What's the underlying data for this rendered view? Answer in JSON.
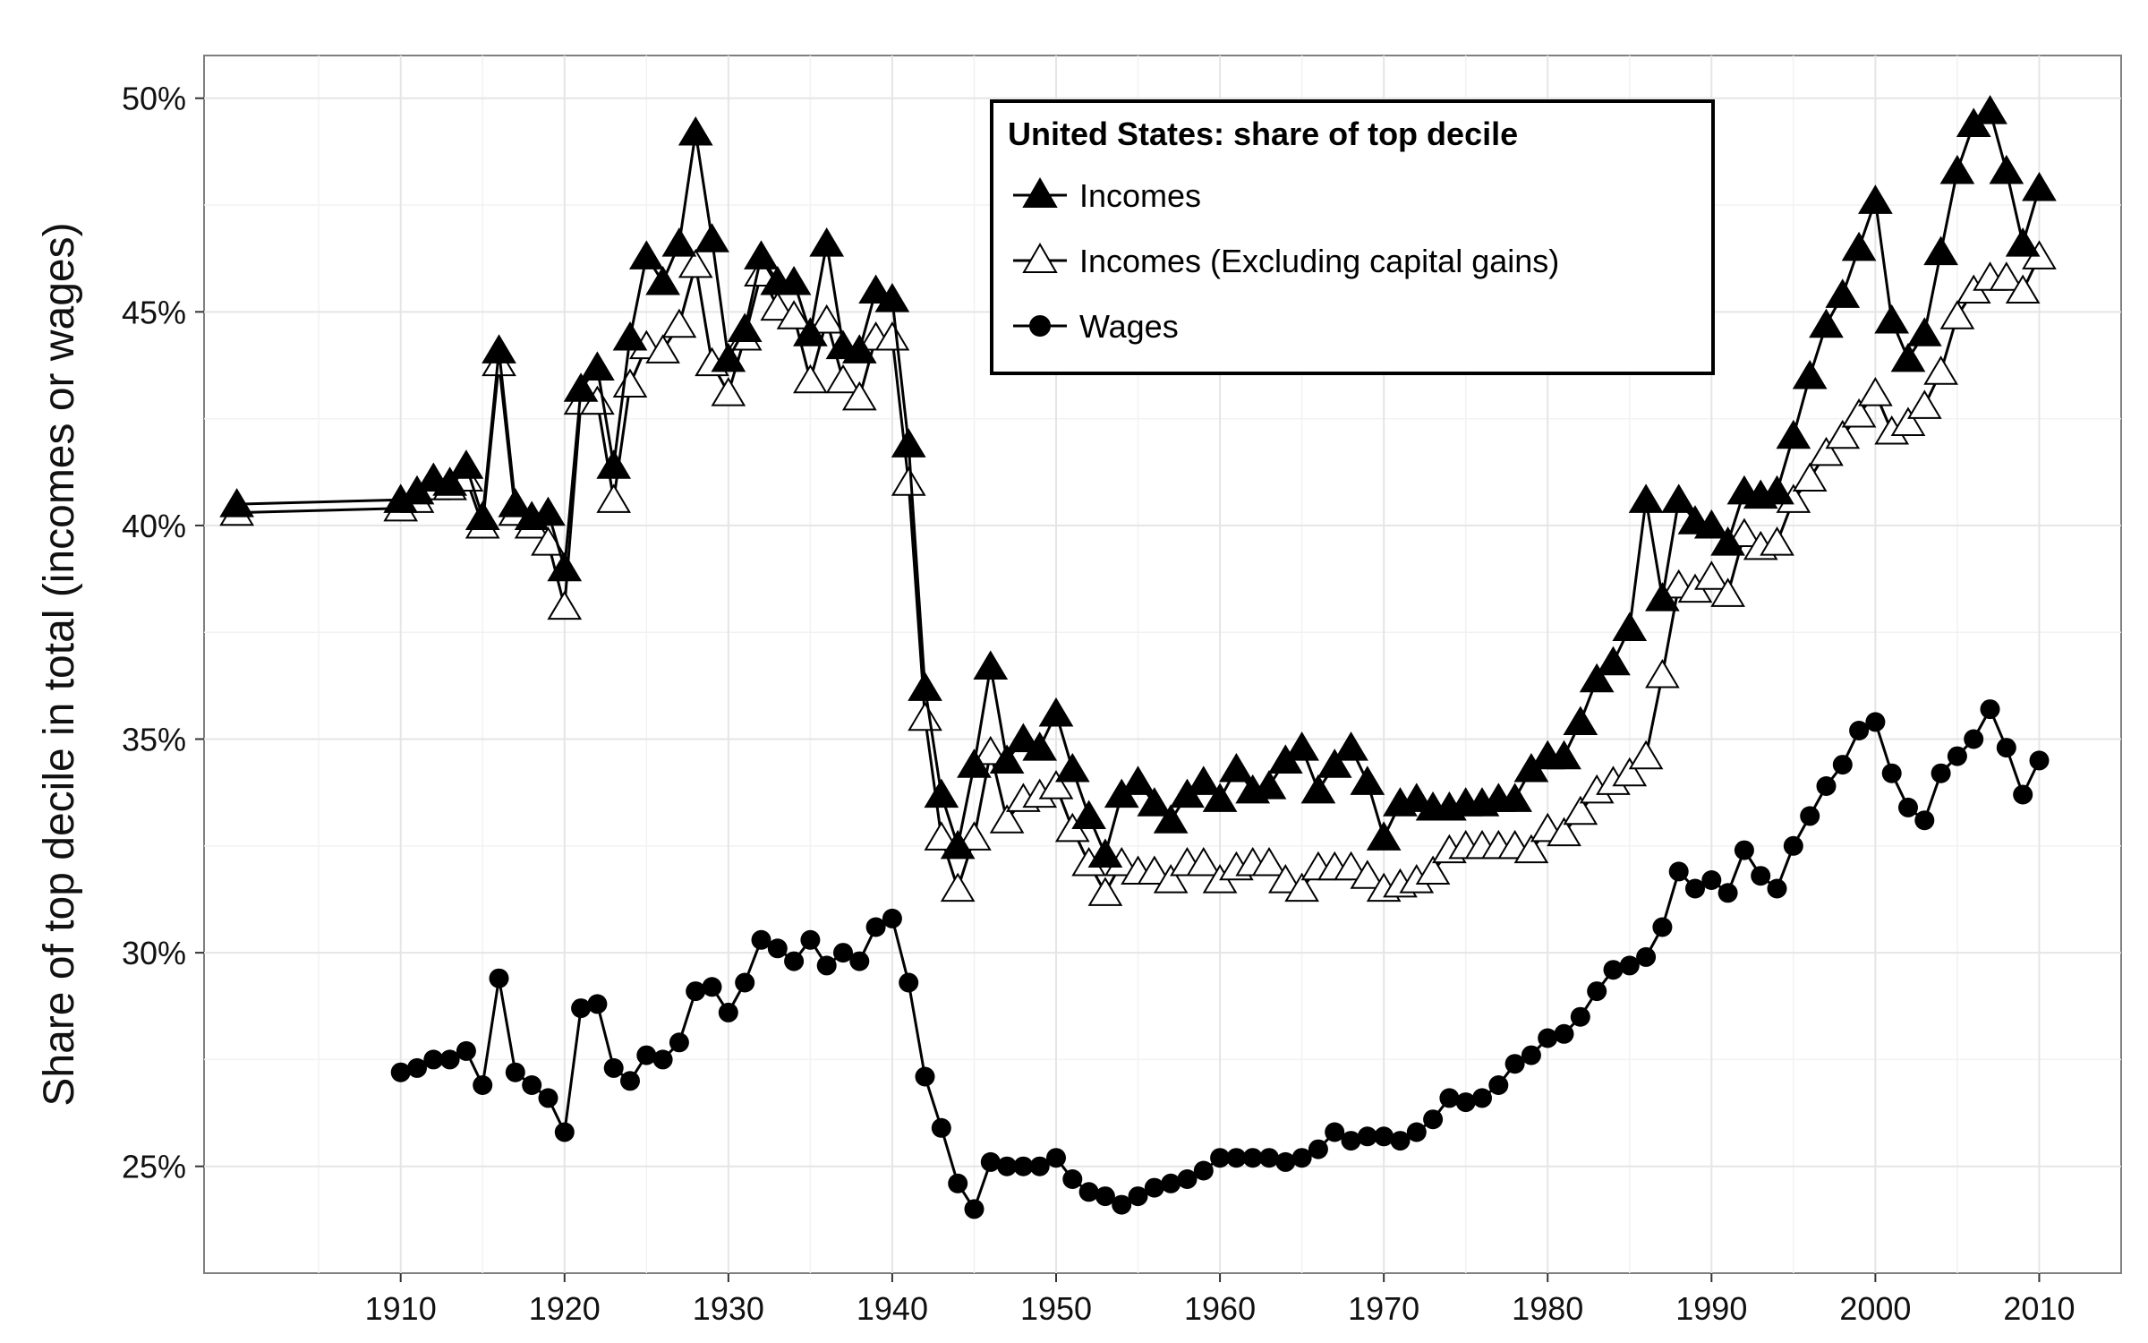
{
  "chart_data": {
    "type": "line",
    "ylabel": "Share of top decile in total (incomes or wages)",
    "xlabel": "",
    "xlim": [
      1898,
      2015
    ],
    "ylim": [
      22.5,
      51
    ],
    "x_ticks": [
      1910,
      1920,
      1930,
      1940,
      1950,
      1960,
      1970,
      1980,
      1990,
      2000,
      2010
    ],
    "x_tick_labels": [
      "1910",
      "1920",
      "1930",
      "1940",
      "1950",
      "1960",
      "1970",
      "1980",
      "1990",
      "2000",
      "2010"
    ],
    "y_ticks": [
      25,
      30,
      35,
      40,
      45,
      50
    ],
    "y_tick_labels": [
      "25%",
      "30%",
      "35%",
      "40%",
      "45%",
      "50%"
    ],
    "grid": true,
    "legend": {
      "title": "United States: share of top decile",
      "position": "top-center"
    },
    "series": [
      {
        "name": "Incomes",
        "marker": "filled-triangle",
        "x": [
          1900,
          1910,
          1911,
          1912,
          1913,
          1914,
          1915,
          1916,
          1917,
          1918,
          1919,
          1920,
          1921,
          1922,
          1923,
          1924,
          1925,
          1926,
          1927,
          1928,
          1929,
          1930,
          1931,
          1932,
          1933,
          1934,
          1935,
          1936,
          1937,
          1938,
          1939,
          1940,
          1941,
          1942,
          1943,
          1944,
          1945,
          1946,
          1947,
          1948,
          1949,
          1950,
          1951,
          1952,
          1953,
          1954,
          1955,
          1956,
          1957,
          1958,
          1959,
          1960,
          1961,
          1962,
          1963,
          1964,
          1965,
          1966,
          1967,
          1968,
          1969,
          1970,
          1971,
          1972,
          1973,
          1974,
          1975,
          1976,
          1977,
          1978,
          1979,
          1980,
          1981,
          1982,
          1983,
          1984,
          1985,
          1986,
          1987,
          1988,
          1989,
          1990,
          1991,
          1992,
          1993,
          1994,
          1995,
          1996,
          1997,
          1998,
          1999,
          2000,
          2001,
          2002,
          2003,
          2004,
          2005,
          2006,
          2007,
          2008,
          2009,
          2010
        ],
        "values": [
          40.5,
          40.6,
          40.8,
          41.1,
          41.0,
          41.4,
          40.2,
          44.1,
          40.5,
          40.2,
          40.3,
          39.0,
          43.2,
          43.7,
          41.4,
          44.4,
          46.3,
          45.7,
          46.6,
          49.2,
          46.7,
          43.9,
          44.6,
          46.3,
          45.7,
          45.7,
          44.5,
          46.6,
          44.2,
          44.1,
          45.5,
          45.3,
          41.9,
          36.2,
          33.7,
          32.5,
          34.4,
          36.7,
          34.5,
          35.0,
          34.8,
          35.6,
          34.3,
          33.2,
          32.3,
          33.7,
          34.0,
          33.5,
          33.1,
          33.7,
          34.0,
          33.6,
          34.3,
          33.8,
          33.9,
          34.5,
          34.8,
          33.8,
          34.4,
          34.8,
          34.0,
          32.7,
          33.5,
          33.6,
          33.4,
          33.4,
          33.5,
          33.5,
          33.6,
          33.6,
          34.3,
          34.6,
          34.6,
          35.4,
          36.4,
          36.8,
          37.6,
          40.6,
          38.3,
          40.6,
          40.1,
          40.0,
          39.6,
          40.8,
          40.7,
          40.8,
          42.1,
          43.5,
          44.7,
          45.4,
          46.5,
          47.6,
          44.8,
          43.9,
          44.5,
          46.4,
          48.3,
          49.4,
          49.7,
          48.3,
          46.6,
          47.9
        ]
      },
      {
        "name": "Incomes (Excluding capital gains)",
        "marker": "open-triangle",
        "x": [
          1900,
          1910,
          1911,
          1912,
          1913,
          1914,
          1915,
          1916,
          1917,
          1918,
          1919,
          1920,
          1921,
          1922,
          1923,
          1924,
          1925,
          1926,
          1927,
          1928,
          1929,
          1930,
          1931,
          1932,
          1933,
          1934,
          1935,
          1936,
          1937,
          1938,
          1939,
          1940,
          1941,
          1942,
          1943,
          1944,
          1945,
          1946,
          1947,
          1948,
          1949,
          1950,
          1951,
          1952,
          1953,
          1954,
          1955,
          1956,
          1957,
          1958,
          1959,
          1960,
          1961,
          1962,
          1963,
          1964,
          1965,
          1966,
          1967,
          1968,
          1969,
          1970,
          1971,
          1972,
          1973,
          1974,
          1975,
          1976,
          1977,
          1978,
          1979,
          1980,
          1981,
          1982,
          1983,
          1984,
          1985,
          1986,
          1987,
          1988,
          1989,
          1990,
          1991,
          1992,
          1993,
          1994,
          1995,
          1996,
          1997,
          1998,
          1999,
          2000,
          2001,
          2002,
          2003,
          2004,
          2005,
          2006,
          2007,
          2008,
          2009,
          2010
        ],
        "values": [
          40.3,
          40.4,
          40.6,
          40.9,
          40.9,
          41.1,
          40.0,
          43.8,
          40.3,
          40.0,
          39.6,
          38.1,
          42.9,
          42.9,
          40.6,
          43.3,
          44.2,
          44.1,
          44.7,
          46.1,
          43.8,
          43.1,
          44.4,
          45.9,
          45.1,
          44.9,
          43.4,
          44.8,
          43.4,
          43.0,
          44.4,
          44.4,
          41.0,
          35.5,
          32.7,
          31.5,
          32.7,
          34.7,
          33.1,
          33.6,
          33.7,
          33.9,
          32.9,
          32.1,
          31.4,
          32.1,
          31.9,
          31.9,
          31.7,
          32.1,
          32.1,
          31.7,
          32.0,
          32.1,
          32.1,
          31.7,
          31.5,
          32.0,
          32.0,
          32.0,
          31.8,
          31.5,
          31.6,
          31.7,
          31.9,
          32.4,
          32.5,
          32.5,
          32.5,
          32.5,
          32.4,
          32.9,
          32.8,
          33.3,
          33.8,
          34.0,
          34.2,
          34.6,
          36.5,
          38.6,
          38.5,
          38.8,
          38.4,
          39.8,
          39.5,
          39.6,
          40.6,
          41.1,
          41.7,
          42.1,
          42.6,
          43.1,
          42.2,
          42.4,
          42.8,
          43.6,
          44.9,
          45.5,
          45.8,
          45.8,
          45.5,
          46.3
        ]
      },
      {
        "name": "Wages",
        "marker": "filled-circle",
        "x": [
          1910,
          1911,
          1912,
          1913,
          1914,
          1915,
          1916,
          1917,
          1918,
          1919,
          1920,
          1921,
          1922,
          1923,
          1924,
          1925,
          1926,
          1927,
          1928,
          1929,
          1930,
          1931,
          1932,
          1933,
          1934,
          1935,
          1936,
          1937,
          1938,
          1939,
          1940,
          1941,
          1942,
          1943,
          1944,
          1945,
          1946,
          1947,
          1948,
          1949,
          1950,
          1951,
          1952,
          1953,
          1954,
          1955,
          1956,
          1957,
          1958,
          1959,
          1960,
          1961,
          1962,
          1963,
          1964,
          1965,
          1966,
          1967,
          1968,
          1969,
          1970,
          1971,
          1972,
          1973,
          1974,
          1975,
          1976,
          1977,
          1978,
          1979,
          1980,
          1981,
          1982,
          1983,
          1984,
          1985,
          1986,
          1987,
          1988,
          1989,
          1990,
          1991,
          1992,
          1993,
          1994,
          1995,
          1996,
          1997,
          1998,
          1999,
          2000,
          2001,
          2002,
          2003,
          2004,
          2005,
          2006,
          2007,
          2008,
          2009,
          2010
        ],
        "values": [
          27.2,
          27.3,
          27.5,
          27.5,
          27.7,
          26.9,
          29.4,
          27.2,
          26.9,
          26.6,
          25.8,
          28.7,
          28.8,
          27.3,
          27.0,
          27.6,
          27.5,
          27.9,
          29.1,
          29.2,
          28.6,
          29.3,
          30.3,
          30.1,
          29.8,
          30.3,
          29.7,
          30.0,
          29.8,
          30.6,
          30.8,
          29.3,
          27.1,
          25.9,
          24.6,
          24.0,
          25.1,
          25.0,
          25.0,
          25.0,
          25.2,
          24.7,
          24.4,
          24.3,
          24.1,
          24.3,
          24.5,
          24.6,
          24.7,
          24.9,
          25.2,
          25.2,
          25.2,
          25.2,
          25.1,
          25.2,
          25.4,
          25.8,
          25.6,
          25.7,
          25.7,
          25.6,
          25.8,
          26.1,
          26.6,
          26.5,
          26.6,
          26.9,
          27.4,
          27.6,
          28.0,
          28.1,
          28.5,
          29.1,
          29.6,
          29.7,
          29.9,
          30.6,
          31.9,
          31.5,
          31.7,
          31.4,
          32.4,
          31.8,
          31.5,
          32.5,
          33.2,
          33.9,
          34.4,
          35.2,
          35.4,
          34.2,
          33.4,
          33.1,
          34.2,
          34.6,
          35.0,
          35.7,
          34.8,
          33.7,
          34.5
        ]
      }
    ]
  }
}
